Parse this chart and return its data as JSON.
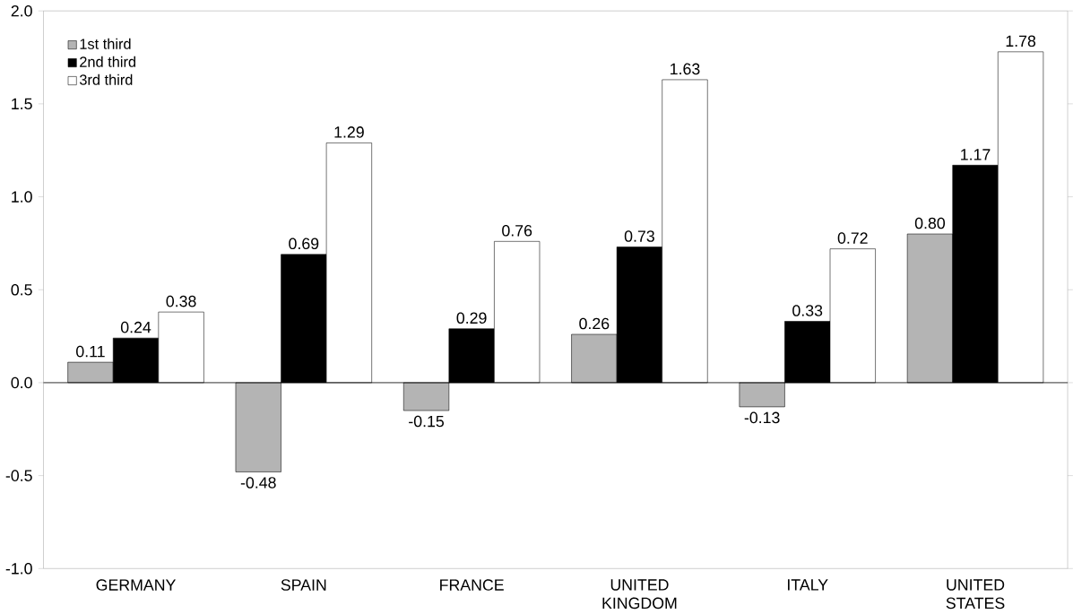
{
  "chart_data": {
    "type": "bar",
    "categories": [
      "GERMANY",
      "SPAIN",
      "FRANCE",
      "UNITED KINGDOM",
      "ITALY",
      "UNITED STATES"
    ],
    "series": [
      {
        "name": "1st third",
        "color": "#b4b4b4",
        "values": [
          0.11,
          -0.48,
          -0.15,
          0.26,
          -0.13,
          0.8
        ],
        "value_labels": [
          "0.11",
          "-0.48",
          "-0.15",
          "0.26",
          "-0.13",
          "0.80"
        ]
      },
      {
        "name": "2nd third",
        "color": "#000000",
        "values": [
          0.24,
          0.69,
          0.29,
          0.73,
          0.33,
          1.17
        ],
        "value_labels": [
          "0.24",
          "0.69",
          "0.29",
          "0.73",
          "0.33",
          "1.17"
        ]
      },
      {
        "name": "3rd third",
        "color": "#ffffff",
        "values": [
          0.38,
          1.29,
          0.76,
          1.63,
          0.72,
          1.78
        ],
        "value_labels": [
          "0.38",
          "1.29",
          "0.76",
          "1.63",
          "0.72",
          "1.78"
        ]
      }
    ],
    "ylim": [
      -1,
      2
    ],
    "yticks": [
      {
        "value": -1,
        "label": "-1.0"
      },
      -0.5,
      {
        "value": 0,
        "label": "0.0"
      },
      0.5,
      {
        "value": 1,
        "label": "1.0"
      },
      1.5,
      {
        "value": 2,
        "label": "2.0"
      }
    ],
    "ref_lines": [
      {
        "axis": "y",
        "value": 0
      }
    ],
    "legend": "top left",
    "grid": false
  }
}
